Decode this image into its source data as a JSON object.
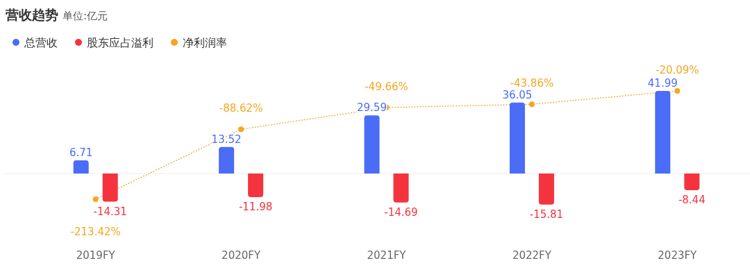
{
  "chart_data": {
    "type": "bar",
    "title": "营收趋势",
    "subtitle": "单位:亿元",
    "categories": [
      "2019FY",
      "2020FY",
      "2021FY",
      "2022FY",
      "2023FY"
    ],
    "series": [
      {
        "name": "总营收",
        "color": "#4a6cf7",
        "values": [
          6.71,
          13.52,
          29.59,
          36.05,
          41.99
        ]
      },
      {
        "name": "股东应占溢利",
        "color": "#f5333f",
        "values": [
          -14.31,
          -11.98,
          -14.69,
          -15.81,
          -8.44
        ]
      },
      {
        "name": "净利润率",
        "type": "line",
        "axis": "y2",
        "color": "#f5a623",
        "values": [
          -213.42,
          -88.62,
          -49.66,
          -43.86,
          -20.09
        ],
        "value_labels": [
          "-213.42%",
          "-88.62%",
          "-49.66%",
          "-43.86%",
          "-20.09%"
        ]
      }
    ],
    "data_labels": true,
    "legend": "top left",
    "marker": "circle",
    "line_style": "dotted"
  }
}
